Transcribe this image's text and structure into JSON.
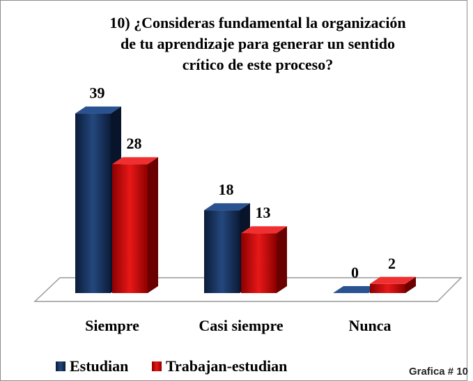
{
  "chart_data": {
    "type": "bar3d",
    "title": [
      "10) ¿Consideras fundamental la organización",
      "de tu aprendizaje para generar un sentido",
      "crítico de este proceso?"
    ],
    "categories": [
      "Siempre",
      "Casi siempre",
      "Nunca"
    ],
    "series": [
      {
        "name": "Estudian",
        "color": "#1b3a6b",
        "values": [
          39,
          18,
          0
        ]
      },
      {
        "name": "Trabajan-estudian",
        "color": "#d41010",
        "values": [
          28,
          13,
          2
        ]
      }
    ],
    "legend": "bottom-left",
    "annotation": "Grafica # 10"
  }
}
